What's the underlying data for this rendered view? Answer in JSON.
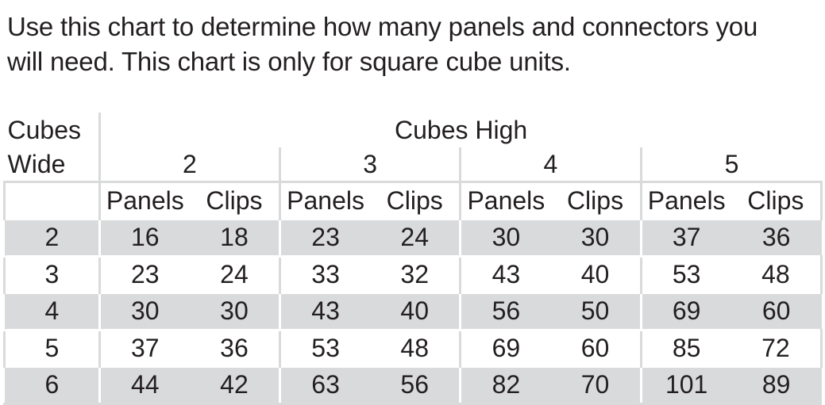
{
  "intro": {
    "line1": "Use this chart to determine how many panels and connectors you",
    "line2": "will need. This chart is only for square cube units."
  },
  "table": {
    "wide_label_line1": "Cubes",
    "wide_label_line2": "Wide",
    "high_label": "Cubes High",
    "high_groups": [
      "2",
      "3",
      "4",
      "5"
    ],
    "subheaders": [
      "Panels",
      "Clips",
      "Panels",
      "Clips",
      "Panels",
      "Clips",
      "Panels",
      "Clips"
    ],
    "rows": [
      {
        "wide": "2",
        "values": [
          "16",
          "18",
          "23",
          "24",
          "30",
          "30",
          "37",
          "36"
        ]
      },
      {
        "wide": "3",
        "values": [
          "23",
          "24",
          "33",
          "32",
          "43",
          "40",
          "53",
          "48"
        ]
      },
      {
        "wide": "4",
        "values": [
          "30",
          "30",
          "43",
          "40",
          "56",
          "50",
          "69",
          "60"
        ]
      },
      {
        "wide": "5",
        "values": [
          "37",
          "36",
          "53",
          "48",
          "69",
          "60",
          "85",
          "72"
        ]
      },
      {
        "wide": "6",
        "values": [
          "44",
          "42",
          "63",
          "56",
          "82",
          "70",
          "101",
          "89"
        ]
      }
    ]
  },
  "colors": {
    "text": "#231f20",
    "shade": "#d9dadb",
    "background": "#ffffff"
  }
}
